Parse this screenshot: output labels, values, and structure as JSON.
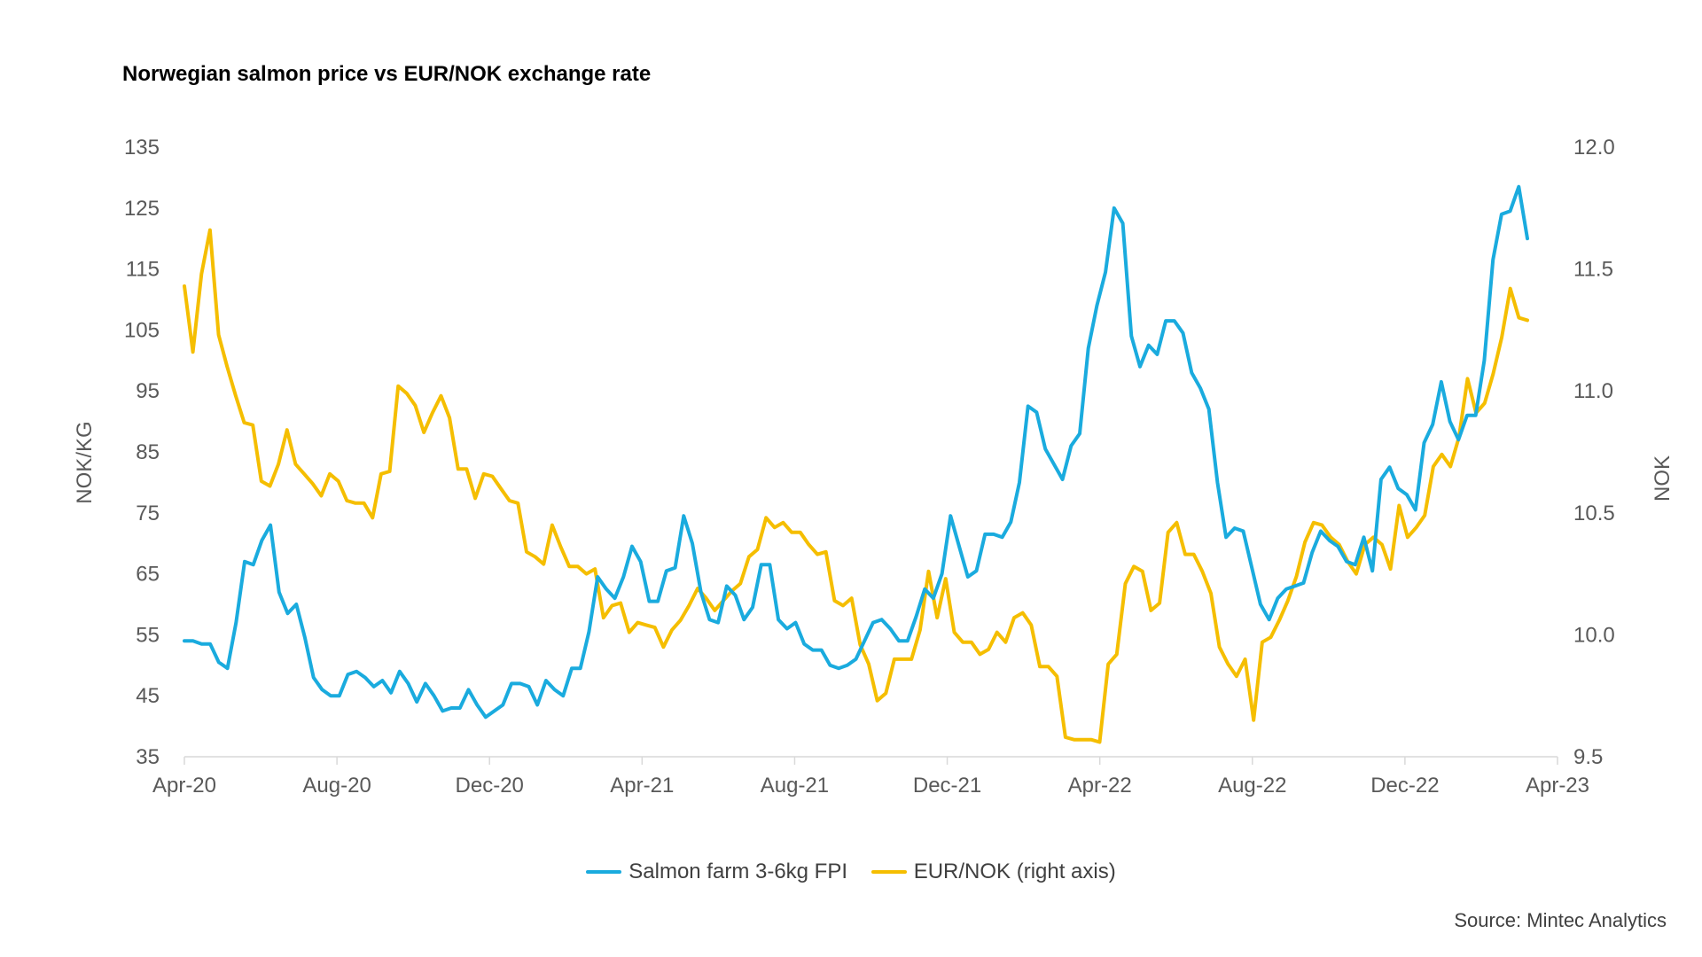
{
  "chart_data": {
    "type": "line",
    "title": "Norwegian salmon price vs EUR/NOK exchange rate",
    "ylabel_left": "NOK/KG",
    "ylabel_right": "NOK",
    "ylim_left": [
      35,
      135
    ],
    "ylim_right": [
      9.5,
      12.0
    ],
    "yticks_left": [
      "135",
      "125",
      "115",
      "105",
      "95",
      "85",
      "75",
      "65",
      "55",
      "45",
      "35"
    ],
    "yticks_right": [
      "12.0",
      "11.5",
      "11.0",
      "10.5",
      "10.0",
      "9.5"
    ],
    "x_start": "2020-04",
    "x_end": "2023-04",
    "xtick_labels": [
      "Apr-20",
      "Aug-20",
      "Dec-20",
      "Apr-21",
      "Aug-21",
      "Dec-21",
      "Apr-22",
      "Aug-22",
      "Dec-22",
      "Apr-23"
    ],
    "grid": false,
    "legend_position": "bottom",
    "source": "Source: Mintec Analytics",
    "series": [
      {
        "name": "Salmon farm 3-6kg FPI",
        "axis": "left",
        "color": "#1AABDE",
        "values": [
          54,
          54,
          53.5,
          53.5,
          50.5,
          49.5,
          57,
          67,
          66.5,
          70.5,
          73,
          62,
          58.5,
          60,
          54.5,
          48,
          46,
          45,
          45,
          48.5,
          49,
          48,
          46.5,
          47.5,
          45.5,
          49,
          47,
          44,
          47,
          45,
          42.5,
          43,
          43,
          46,
          43.5,
          41.5,
          42.5,
          43.5,
          47,
          47,
          46.5,
          43.5,
          47.5,
          46,
          45,
          49.5,
          49.5,
          55.5,
          64.5,
          62.5,
          61,
          64.5,
          69.5,
          67,
          60.5,
          60.5,
          65.5,
          66,
          74.5,
          70,
          62,
          57.5,
          57,
          63,
          61.5,
          57.5,
          59.5,
          66.5,
          66.5,
          57.5,
          56,
          57,
          53.5,
          52.5,
          52.5,
          50,
          49.5,
          50,
          51,
          54,
          57,
          57.5,
          56,
          54,
          54,
          58,
          62.5,
          61,
          65,
          74.5,
          69.5,
          64.5,
          65.5,
          71.5,
          71.5,
          71,
          73.5,
          80,
          92.5,
          91.5,
          85.5,
          83,
          80.5,
          86,
          88,
          102,
          109,
          114.5,
          125,
          122.5,
          104,
          99,
          102.5,
          101,
          106.5,
          106.5,
          104.5,
          98,
          95.5,
          92,
          80,
          71,
          72.5,
          72,
          66,
          60,
          57.5,
          61,
          62.5,
          63,
          63.5,
          68.5,
          72,
          70.5,
          69.5,
          67,
          66.5,
          71,
          65.5,
          80.5,
          82.5,
          79,
          78,
          75.5,
          86.5,
          89.5,
          96.5,
          90,
          87,
          91,
          91,
          100,
          116.5,
          124,
          124.5,
          128.5,
          120
        ]
      },
      {
        "name": "EUR/NOK (right axis)",
        "axis": "right",
        "color": "#F5BE00",
        "values": [
          11.43,
          11.16,
          11.48,
          11.66,
          11.23,
          11.1,
          10.98,
          10.87,
          10.86,
          10.63,
          10.61,
          10.7,
          10.84,
          10.7,
          10.66,
          10.62,
          10.57,
          10.66,
          10.63,
          10.55,
          10.54,
          10.54,
          10.48,
          10.66,
          10.67,
          11.02,
          10.99,
          10.94,
          10.83,
          10.91,
          10.98,
          10.89,
          10.68,
          10.68,
          10.56,
          10.66,
          10.65,
          10.6,
          10.55,
          10.54,
          10.34,
          10.32,
          10.29,
          10.45,
          10.36,
          10.28,
          10.28,
          10.25,
          10.27,
          10.07,
          10.12,
          10.13,
          10.01,
          10.05,
          10.04,
          10.03,
          9.95,
          10.02,
          10.06,
          10.12,
          10.19,
          10.15,
          10.1,
          10.14,
          10.18,
          10.21,
          10.32,
          10.35,
          10.48,
          10.44,
          10.46,
          10.42,
          10.42,
          10.37,
          10.33,
          10.34,
          10.14,
          10.12,
          10.15,
          9.96,
          9.88,
          9.73,
          9.76,
          9.9,
          9.9,
          9.9,
          10.02,
          10.26,
          10.07,
          10.23,
          10.01,
          9.97,
          9.97,
          9.92,
          9.94,
          10.01,
          9.97,
          10.07,
          10.09,
          10.04,
          9.87,
          9.87,
          9.83,
          9.58,
          9.57,
          9.57,
          9.57,
          9.56,
          9.88,
          9.92,
          10.21,
          10.28,
          10.26,
          10.1,
          10.13,
          10.42,
          10.46,
          10.33,
          10.33,
          10.26,
          10.17,
          9.95,
          9.88,
          9.83,
          9.9,
          9.65,
          9.97,
          9.99,
          10.06,
          10.14,
          10.24,
          10.38,
          10.46,
          10.45,
          10.4,
          10.37,
          10.3,
          10.25,
          10.37,
          10.4,
          10.37,
          10.27,
          10.53,
          10.4,
          10.44,
          10.49,
          10.69,
          10.74,
          10.69,
          10.81,
          11.05,
          10.91,
          10.95,
          11.07,
          11.22,
          11.42,
          11.3,
          11.29
        ]
      }
    ]
  },
  "legend": {
    "items": [
      {
        "label": "Salmon farm 3-6kg FPI",
        "color": "#1AABDE"
      },
      {
        "label": "EUR/NOK (right axis)",
        "color": "#F5BE00"
      }
    ]
  },
  "axis_color": "#D9D9D9"
}
